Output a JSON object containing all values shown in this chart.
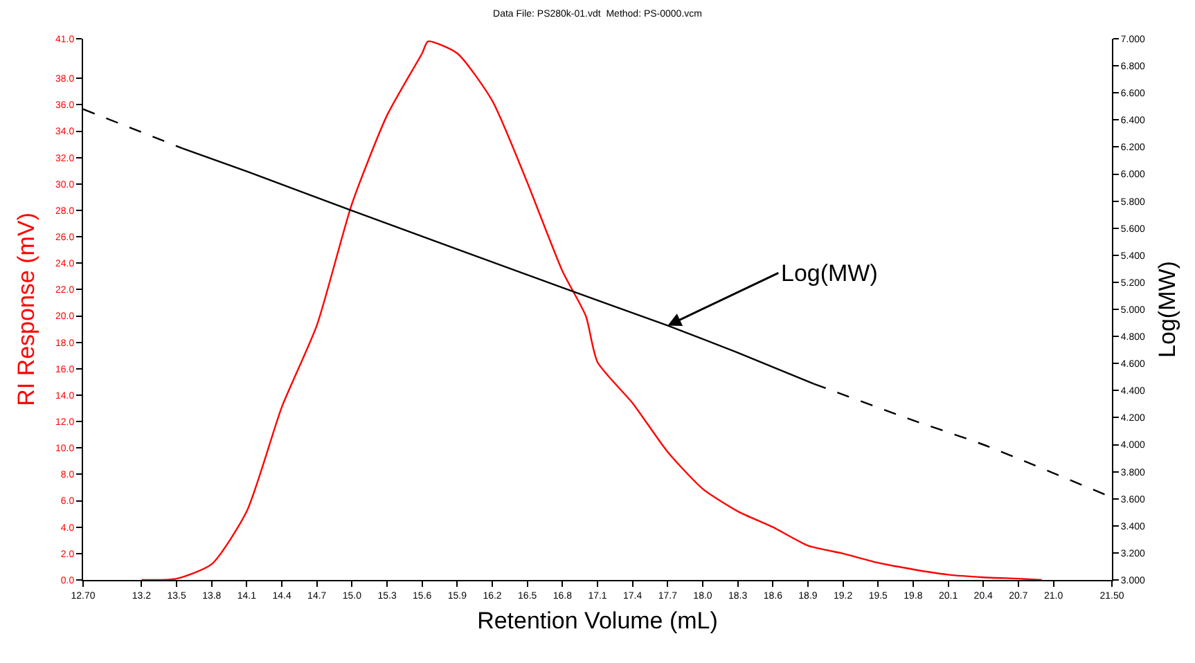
{
  "chart_data": {
    "type": "line",
    "title": "Data File: PS280k-01.vdt  Method: PS-0000.vcm",
    "xlabel": "Retention Volume (mL)",
    "ylabel": "RI Response (mV)",
    "y2label": "Log(MW)",
    "xlim": [
      12.7,
      21.5
    ],
    "xticks": [
      {
        "value": 12.7,
        "label": "12.70"
      },
      13.2,
      13.5,
      13.8,
      14.1,
      14.4,
      14.7,
      {
        "value": 15.0,
        "label": "15.0"
      },
      15.3,
      15.6,
      15.9,
      16.2,
      16.5,
      16.8,
      17.1,
      17.4,
      17.7,
      {
        "value": 18.0,
        "label": "18.0"
      },
      18.3,
      18.6,
      18.9,
      19.2,
      19.5,
      19.8,
      20.1,
      20.4,
      20.7,
      {
        "value": 21.0,
        "label": "21.0"
      },
      {
        "value": 21.5,
        "label": "21.50"
      }
    ],
    "ylim": [
      0,
      41
    ],
    "yticks": [
      {
        "value": 0,
        "label": "0.0"
      },
      {
        "value": 2,
        "label": "2.0"
      },
      {
        "value": 4,
        "label": "4.0"
      },
      {
        "value": 6,
        "label": "6.0"
      },
      {
        "value": 8,
        "label": "8.0"
      },
      {
        "value": 10,
        "label": "10.0"
      },
      {
        "value": 12,
        "label": "12.0"
      },
      {
        "value": 14,
        "label": "14.0"
      },
      {
        "value": 16,
        "label": "16.0"
      },
      {
        "value": 18,
        "label": "18.0"
      },
      {
        "value": 20,
        "label": "20.0"
      },
      {
        "value": 22,
        "label": "22.0"
      },
      {
        "value": 24,
        "label": "24.0"
      },
      {
        "value": 26,
        "label": "26.0"
      },
      {
        "value": 28,
        "label": "28.0"
      },
      {
        "value": 30,
        "label": "30.0"
      },
      {
        "value": 32,
        "label": "32.0"
      },
      {
        "value": 34,
        "label": "34.0"
      },
      {
        "value": 36,
        "label": "36.0"
      },
      {
        "value": 38,
        "label": "38.0"
      },
      {
        "value": 41,
        "label": "41.0"
      }
    ],
    "y2lim": [
      3,
      7
    ],
    "y2ticks": [
      {
        "value": 3,
        "label": "3.000"
      },
      {
        "value": 3.2,
        "label": "3.200"
      },
      {
        "value": 3.4,
        "label": "3.400"
      },
      {
        "value": 3.6,
        "label": "3.600"
      },
      {
        "value": 3.8,
        "label": "3.800"
      },
      {
        "value": 4,
        "label": "4.000"
      },
      {
        "value": 4.2,
        "label": "4.200"
      },
      {
        "value": 4.4,
        "label": "4.400"
      },
      {
        "value": 4.6,
        "label": "4.600"
      },
      {
        "value": 4.8,
        "label": "4.800"
      },
      {
        "value": 5,
        "label": "5.000"
      },
      {
        "value": 5.2,
        "label": "5.200"
      },
      {
        "value": 5.4,
        "label": "5.400"
      },
      {
        "value": 5.6,
        "label": "5.600"
      },
      {
        "value": 5.8,
        "label": "5.800"
      },
      {
        "value": 6,
        "label": "6.000"
      },
      {
        "value": 6.2,
        "label": "6.200"
      },
      {
        "value": 6.4,
        "label": "6.400"
      },
      {
        "value": 6.6,
        "label": "6.600"
      },
      {
        "value": 6.8,
        "label": "6.800"
      },
      {
        "value": 7,
        "label": "7.000"
      }
    ],
    "grid": false,
    "legend": false,
    "marker": "none",
    "series": [
      {
        "color": "#ff0000",
        "line_style": "solid",
        "x": [
          13.2,
          13.5,
          13.8,
          14.1,
          14.4,
          14.7,
          15.0,
          15.3,
          15.6,
          15.65,
          15.9,
          16.2,
          16.5,
          16.8,
          17.0,
          17.1,
          17.4,
          17.7,
          18.0,
          18.3,
          18.6,
          18.9,
          19.2,
          19.5,
          19.8,
          20.1,
          20.4,
          20.7,
          20.9
        ],
        "values": [
          0,
          0.1,
          1.2,
          5.2,
          13.1,
          19.3,
          28.5,
          35.2,
          39.9,
          40.8,
          39.9,
          36.3,
          30.1,
          23.4,
          20.0,
          16.5,
          13.4,
          9.7,
          6.9,
          5.2,
          4.0,
          2.6,
          2.0,
          1.3,
          0.8,
          0.4,
          0.2,
          0.1,
          0
        ]
      },
      {
        "name": "Log(MW)",
        "color": "#000000",
        "axis": "y2",
        "line_style": "solid",
        "x": [
          13.55,
          14.1,
          15.0,
          16.8,
          17.7,
          18.3,
          18.95
        ],
        "values": [
          6.19,
          6.02,
          5.73,
          5.16,
          4.88,
          4.68,
          4.45
        ]
      },
      {
        "color": "#000000",
        "axis": "y2",
        "line_style": "dashed",
        "x": [
          12.7,
          13.55,
          13.6,
          18.9,
          18.95,
          19.8,
          20.4,
          21.5
        ],
        "values": [
          6.48,
          6.19,
          null,
          null,
          4.45,
          4.18,
          4.0,
          3.61
        ]
      }
    ]
  }
}
